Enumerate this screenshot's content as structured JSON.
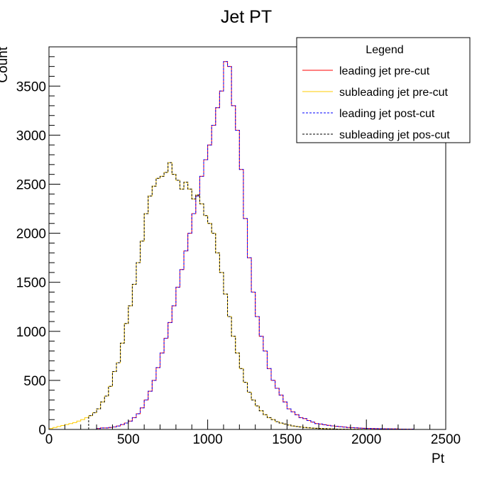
{
  "chart_data": {
    "type": "histogram",
    "title": "Jet PT",
    "xlabel": "Pt",
    "ylabel": "Count",
    "xlim": [
      0,
      2500
    ],
    "ylim": [
      0,
      3900
    ],
    "x_ticks": [
      0,
      500,
      1000,
      1500,
      2000,
      2500
    ],
    "y_ticks": [
      0,
      500,
      1000,
      1500,
      2000,
      2500,
      3000,
      3500
    ],
    "bin_width": 25,
    "legend": {
      "title": "Legend",
      "placement": "top-right",
      "entries": [
        {
          "label": "leading jet pre-cut",
          "color": "#ff0000",
          "style": "solid"
        },
        {
          "label": "subleading jet pre-cut",
          "color": "#ffcc00",
          "style": "solid"
        },
        {
          "label": "leading jet post-cut",
          "color": "#0000ff",
          "style": "dashed"
        },
        {
          "label": "subleading jet pos-cut",
          "color": "#000000",
          "style": "dashed"
        }
      ]
    },
    "series": [
      {
        "name": "leading jet pre-cut",
        "color": "#ff0000",
        "style": "solid",
        "bin_start": 300,
        "values": [
          10,
          15,
          15,
          20,
          25,
          35,
          50,
          65,
          85,
          120,
          160,
          220,
          300,
          390,
          500,
          630,
          780,
          930,
          1090,
          1260,
          1450,
          1630,
          1820,
          2000,
          2200,
          2380,
          2580,
          2750,
          2900,
          3100,
          3280,
          3450,
          3750,
          3700,
          3300,
          3050,
          2650,
          2150,
          1750,
          1400,
          1150,
          950,
          800,
          620,
          500,
          420,
          350,
          280,
          210,
          180,
          150,
          120,
          110,
          90,
          75,
          60,
          55,
          48,
          42,
          36,
          32,
          28,
          24,
          20,
          18,
          16,
          14,
          12,
          10,
          9,
          8,
          7,
          6,
          6,
          5,
          5,
          4,
          4,
          3,
          3
        ]
      },
      {
        "name": "subleading jet pre-cut",
        "color": "#ffcc00",
        "style": "solid",
        "bin_start": 0,
        "values": [
          10,
          20,
          30,
          40,
          50,
          60,
          70,
          85,
          100,
          120,
          140,
          170,
          210,
          280,
          340,
          440,
          590,
          680,
          880,
          1080,
          1260,
          1480,
          1700,
          1920,
          2200,
          2380,
          2480,
          2560,
          2580,
          2620,
          2720,
          2600,
          2540,
          2450,
          2520,
          2450,
          2350,
          2390,
          2300,
          2180,
          2100,
          2000,
          1800,
          1600,
          1380,
          1150,
          950,
          780,
          620,
          480,
          380,
          300,
          240,
          190,
          150,
          120,
          100,
          80,
          65,
          55,
          45,
          35,
          30,
          25,
          20,
          16,
          14,
          12,
          10,
          8,
          6,
          5,
          4,
          3,
          3,
          2,
          2,
          2,
          1,
          1
        ]
      },
      {
        "name": "leading jet post-cut",
        "color": "#0000ff",
        "style": "dashed",
        "bin_start": 300,
        "values": [
          10,
          15,
          15,
          20,
          25,
          35,
          50,
          65,
          85,
          120,
          160,
          220,
          300,
          390,
          500,
          630,
          780,
          930,
          1090,
          1260,
          1450,
          1630,
          1820,
          2000,
          2200,
          2380,
          2580,
          2750,
          2900,
          3100,
          3280,
          3450,
          3750,
          3700,
          3300,
          3050,
          2650,
          2150,
          1750,
          1400,
          1150,
          950,
          800,
          620,
          500,
          420,
          350,
          280,
          210,
          180,
          150,
          120,
          110,
          90,
          75,
          60,
          55,
          48,
          42,
          36,
          32,
          28,
          24,
          20,
          18,
          16,
          14,
          12,
          10,
          9,
          8,
          7,
          6,
          6,
          5,
          5,
          4,
          4,
          3,
          3
        ]
      },
      {
        "name": "subleading jet pos-cut",
        "color": "#000000",
        "style": "dashed",
        "bin_start": 250,
        "values": [
          140,
          170,
          210,
          280,
          340,
          440,
          590,
          680,
          880,
          1080,
          1260,
          1480,
          1700,
          1920,
          2200,
          2380,
          2480,
          2560,
          2580,
          2620,
          2720,
          2600,
          2540,
          2450,
          2520,
          2450,
          2350,
          2390,
          2300,
          2180,
          2100,
          2000,
          1800,
          1600,
          1380,
          1150,
          950,
          780,
          620,
          480,
          380,
          300,
          240,
          190,
          150,
          120,
          100,
          80,
          65,
          55,
          45,
          35,
          30,
          25,
          20,
          16,
          14,
          12,
          10,
          8,
          6,
          5,
          4,
          3,
          3,
          2,
          2,
          2,
          1,
          1
        ]
      }
    ]
  }
}
